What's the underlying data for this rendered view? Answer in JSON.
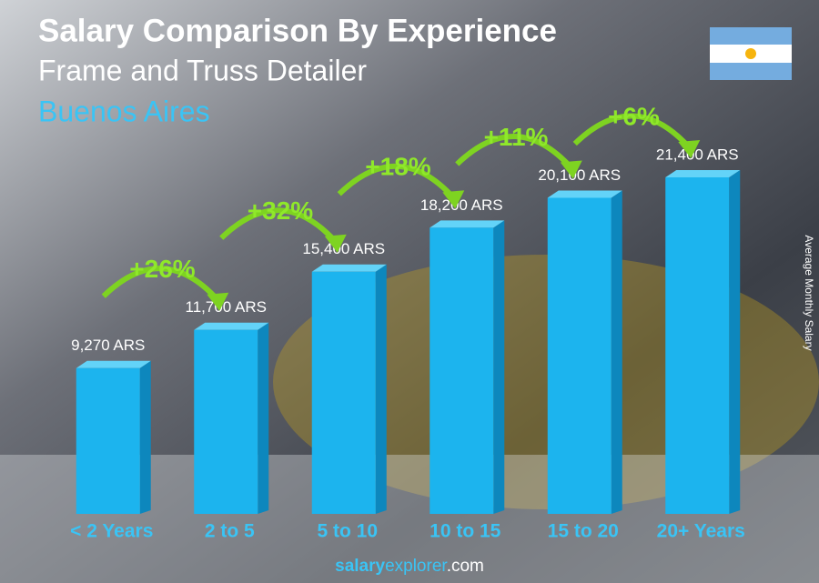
{
  "title": "Salary Comparison By Experience",
  "subtitle": "Frame and Truss Detailer",
  "location": "Buenos Aires",
  "chart_data": {
    "type": "bar",
    "categories": [
      "< 2 Years",
      "2 to 5",
      "5 to 10",
      "10 to 15",
      "15 to 20",
      "20+ Years"
    ],
    "values": [
      9270,
      11700,
      15400,
      18200,
      20100,
      21400
    ],
    "value_labels": [
      "9,270 ARS",
      "11,700 ARS",
      "15,400 ARS",
      "18,200 ARS",
      "20,100 ARS",
      "21,400 ARS"
    ],
    "changes": [
      "+26%",
      "+32%",
      "+18%",
      "+11%",
      "+6%"
    ],
    "y_label": "Average Monthly Salary",
    "color": "#1cb4ee"
  },
  "footer": [
    "salary",
    "explorer",
    ".com"
  ]
}
